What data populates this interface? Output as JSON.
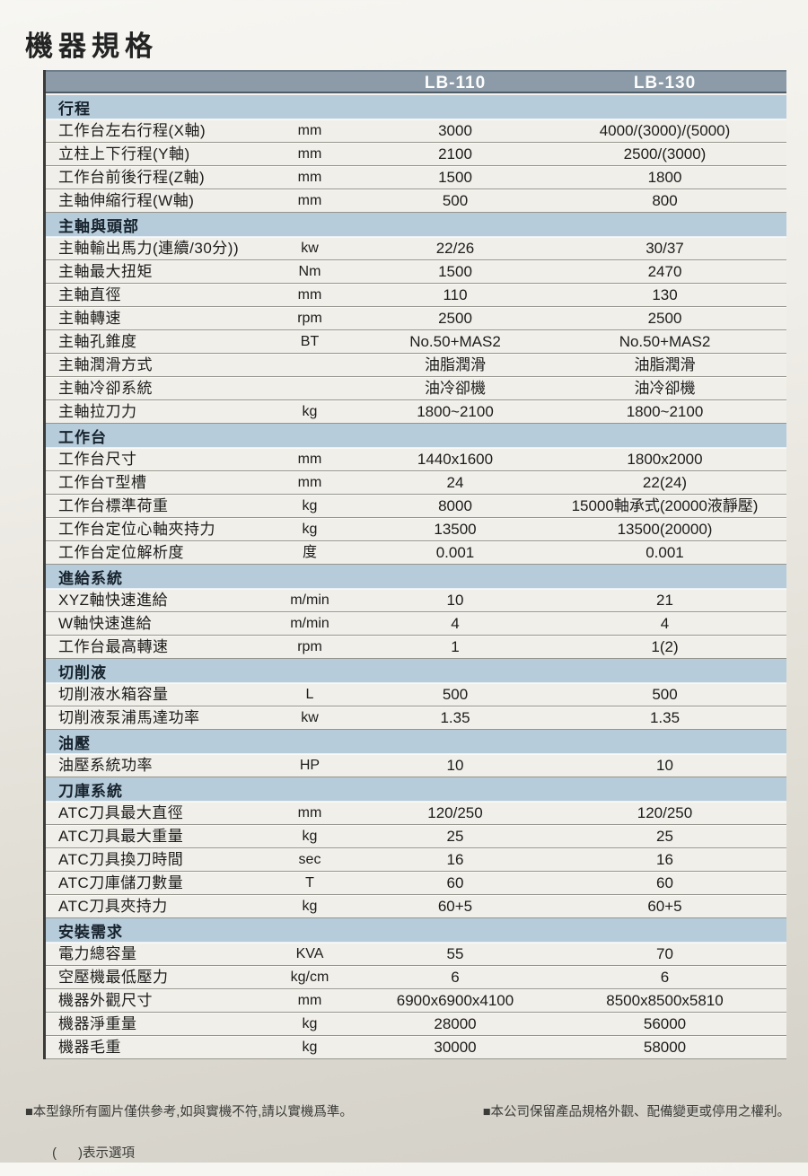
{
  "page": {
    "title": "機器規格",
    "footnotes": {
      "left": "■本型錄所有圖片僅供參考,如與實機不符,請以實機爲準。",
      "right": "■本公司保留產品規格外觀、配備變更或停用之權利。",
      "option_note": "(      )表示選項"
    }
  },
  "colors": {
    "header_bar": "#8C9BA7",
    "header_bar_edge": "#4D5C67",
    "section_bar": "#B6CCDA",
    "row_background": "#F1EFE9",
    "row_divider": "#95958E",
    "table_left_border": "#3A3A38",
    "page_background_top": "#F7F6F2",
    "page_background_bottom": "#D3D0C7",
    "header_text": "#FDFDFD"
  },
  "table": {
    "models": [
      "LB-110",
      "LB-130"
    ],
    "sections": [
      {
        "title": "行程",
        "rows": [
          {
            "name": "工作台左右行程(X軸)",
            "unit": "mm",
            "v110": "3000",
            "v130": "4000/(3000)/(5000)"
          },
          {
            "name": "立柱上下行程(Y軸)",
            "unit": "mm",
            "v110": "2100",
            "v130": "2500/(3000)"
          },
          {
            "name": "工作台前後行程(Z軸)",
            "unit": "mm",
            "v110": "1500",
            "v130": "1800"
          },
          {
            "name": "主軸伸縮行程(W軸)",
            "unit": "mm",
            "v110": "500",
            "v130": "800"
          }
        ]
      },
      {
        "title": "主軸與頭部",
        "rows": [
          {
            "name": "主軸輸出馬力(連續/30分))",
            "unit": "kw",
            "v110": "22/26",
            "v130": "30/37"
          },
          {
            "name": "主軸最大扭矩",
            "unit": "Nm",
            "v110": "1500",
            "v130": "2470"
          },
          {
            "name": "主軸直徑",
            "unit": "mm",
            "v110": "110",
            "v130": "130"
          },
          {
            "name": "主軸轉速",
            "unit": "rpm",
            "v110": "2500",
            "v130": "2500"
          },
          {
            "name": "主軸孔錐度",
            "unit": "BT",
            "v110": "No.50+MAS2",
            "v130": "No.50+MAS2"
          },
          {
            "name": "主軸潤滑方式",
            "unit": "",
            "v110": "油脂潤滑",
            "v130": "油脂潤滑"
          },
          {
            "name": "主軸冷卻系統",
            "unit": "",
            "v110": "油冷卻機",
            "v130": "油冷卻機"
          },
          {
            "name": "主軸拉刀力",
            "unit": "kg",
            "v110": "1800~2100",
            "v130": "1800~2100"
          }
        ]
      },
      {
        "title": "工作台",
        "rows": [
          {
            "name": "工作台尺寸",
            "unit": "mm",
            "v110": "1440x1600",
            "v130": "1800x2000"
          },
          {
            "name": "工作台T型槽",
            "unit": "mm",
            "v110": "24",
            "v130": "22(24)"
          },
          {
            "name": "工作台標準荷重",
            "unit": "kg",
            "v110": "8000",
            "v130": "15000軸承式(20000液靜壓)"
          },
          {
            "name": "工作台定位心軸夾持力",
            "unit": "kg",
            "v110": "13500",
            "v130": "13500(20000)"
          },
          {
            "name": "工作台定位解析度",
            "unit": "度",
            "v110": "0.001",
            "v130": "0.001"
          }
        ]
      },
      {
        "title": "進給系統",
        "rows": [
          {
            "name": "XYZ軸快速進給",
            "unit": "m/min",
            "v110": "10",
            "v130": "21"
          },
          {
            "name": "W軸快速進給",
            "unit": "m/min",
            "v110": "4",
            "v130": "4"
          },
          {
            "name": "工作台最高轉速",
            "unit": "rpm",
            "v110": "1",
            "v130": "1(2)"
          }
        ]
      },
      {
        "title": "切削液",
        "rows": [
          {
            "name": "切削液水箱容量",
            "unit": "L",
            "v110": "500",
            "v130": "500"
          },
          {
            "name": "切削液泵浦馬達功率",
            "unit": "kw",
            "v110": "1.35",
            "v130": "1.35"
          }
        ]
      },
      {
        "title": "油壓",
        "rows": [
          {
            "name": "油壓系統功率",
            "unit": "HP",
            "v110": "10",
            "v130": "10"
          }
        ]
      },
      {
        "title": "刀庫系統",
        "rows": [
          {
            "name": "ATC刀具最大直徑",
            "unit": "mm",
            "v110": "120/250",
            "v130": "120/250"
          },
          {
            "name": "ATC刀具最大重量",
            "unit": "kg",
            "v110": "25",
            "v130": "25"
          },
          {
            "name": "ATC刀具換刀時間",
            "unit": "sec",
            "v110": "16",
            "v130": "16"
          },
          {
            "name": "ATC刀庫儲刀數量",
            "unit": "T",
            "v110": "60",
            "v130": "60"
          },
          {
            "name": "ATC刀具夾持力",
            "unit": "kg",
            "v110": "60+5",
            "v130": "60+5"
          }
        ]
      },
      {
        "title": "安裝需求",
        "rows": [
          {
            "name": "電力總容量",
            "unit": "KVA",
            "v110": "55",
            "v130": "70"
          },
          {
            "name": "空壓機最低壓力",
            "unit": "kg/cm",
            "v110": "6",
            "v130": "6"
          },
          {
            "name": "機器外觀尺寸",
            "unit": "mm",
            "v110": "6900x6900x4100",
            "v130": "8500x8500x5810"
          },
          {
            "name": "機器淨重量",
            "unit": "kg",
            "v110": "28000",
            "v130": "56000"
          },
          {
            "name": "機器毛重",
            "unit": "kg",
            "v110": "30000",
            "v130": "58000"
          }
        ]
      }
    ]
  }
}
